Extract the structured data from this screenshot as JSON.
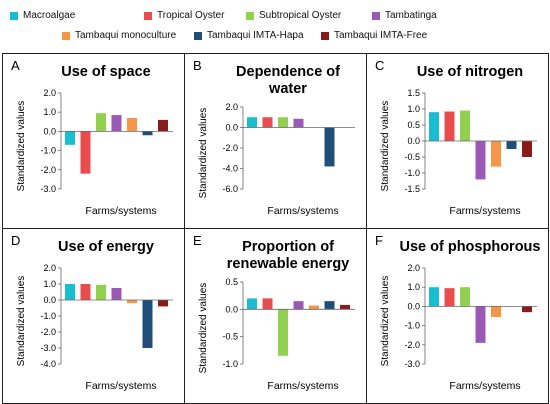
{
  "legend": [
    {
      "name": "Macroalgae",
      "color": "#17BECF"
    },
    {
      "name": "Tropical Oyster",
      "color": "#E84C4C"
    },
    {
      "name": "Subtropical Oyster",
      "color": "#92D050"
    },
    {
      "name": "Tambatinga",
      "color": "#9B59B6"
    },
    {
      "name": "Tambaqui monoculture",
      "color": "#F79646"
    },
    {
      "name": "Tambaqui IMTA-Hapa",
      "color": "#1F4E79"
    },
    {
      "name": "Tambaqui IMTA-Free",
      "color": "#8B1A1A"
    }
  ],
  "chart_data": [
    {
      "type": "bar",
      "letter": "A",
      "title": [
        "Use of space"
      ],
      "xlabel": "Farms/systems",
      "ylabel": "Standardized values",
      "ylim": [
        -3.0,
        2.0
      ],
      "ytick_labels": [
        "2.0",
        "1.0",
        "0.0",
        "-1.0",
        "-2.0",
        "-3.0"
      ],
      "series": [
        {
          "values": [
            -0.7,
            -2.2,
            0.95,
            0.85,
            0.7,
            -0.2,
            0.6
          ]
        }
      ]
    },
    {
      "type": "bar",
      "letter": "B",
      "title": [
        "Dependence of",
        "water"
      ],
      "xlabel": "Farms/systems",
      "ylabel": "Standardized values",
      "ylim": [
        -6.0,
        2.0
      ],
      "ytick_labels": [
        "2.0",
        "0.0",
        "-2.0",
        "-4.0",
        "-6.0"
      ],
      "series": [
        {
          "values": [
            1.0,
            1.0,
            1.0,
            0.85,
            0.0,
            -3.8,
            0.0
          ]
        }
      ]
    },
    {
      "type": "bar",
      "letter": "C",
      "title": [
        "Use of nitrogen"
      ],
      "xlabel": "Farms/systems",
      "ylabel": "Standardized values",
      "ylim": [
        -1.5,
        1.5
      ],
      "ytick_labels": [
        "1.5",
        "1.0",
        "0.5",
        "0.0",
        "-0.5",
        "-1.0",
        "-1.5"
      ],
      "series": [
        {
          "values": [
            0.9,
            0.92,
            0.95,
            -1.2,
            -0.8,
            -0.25,
            -0.5
          ]
        }
      ]
    },
    {
      "type": "bar",
      "letter": "D",
      "title": [
        "Use of energy"
      ],
      "xlabel": "Farms/systems",
      "ylabel": "Standardized values",
      "ylim": [
        -4.0,
        2.0
      ],
      "ytick_labels": [
        "2.0",
        "1.0",
        "0.0",
        "-1.0",
        "-2.0",
        "-3.0",
        "-4.0"
      ],
      "series": [
        {
          "values": [
            1.0,
            1.0,
            0.95,
            0.75,
            -0.2,
            -3.0,
            -0.4
          ]
        }
      ]
    },
    {
      "type": "bar",
      "letter": "E",
      "title": [
        "Proportion of",
        "renewable energy"
      ],
      "xlabel": "Farms/systems",
      "ylabel": "Standardized values",
      "ylim": [
        -1.0,
        0.5
      ],
      "ytick_labels": [
        "0.5",
        "0.0",
        "-0.5",
        "-1.0"
      ],
      "series": [
        {
          "values": [
            0.2,
            0.2,
            -0.85,
            0.15,
            0.07,
            0.15,
            0.08
          ]
        }
      ]
    },
    {
      "type": "bar",
      "letter": "F",
      "title": [
        "Use of phosphorous"
      ],
      "xlabel": "Farms/systems",
      "ylabel": "Standardized values",
      "ylim": [
        -3.0,
        2.0
      ],
      "ytick_labels": [
        "2.0",
        "1.0",
        "0.0",
        "-1.0",
        "-2.0",
        "-3.0"
      ],
      "series": [
        {
          "values": [
            1.0,
            0.95,
            1.0,
            -1.9,
            -0.55,
            0.0,
            -0.3
          ]
        }
      ]
    }
  ]
}
